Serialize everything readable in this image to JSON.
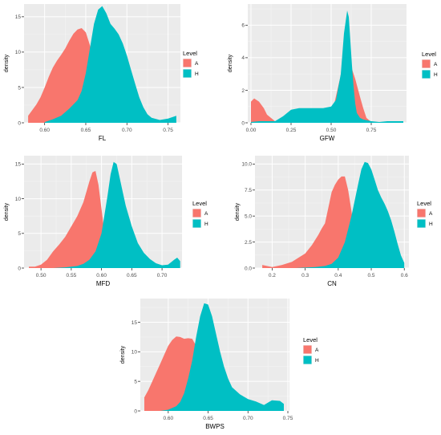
{
  "colors": {
    "A": "#F8766D",
    "H": "#00BFC4",
    "panel_bg": "#EBEBEB",
    "grid_major": "#FFFFFF",
    "grid_minor": "#F4F4F4"
  },
  "legend": {
    "title": "Level",
    "items": [
      {
        "key": "A",
        "label": "A"
      },
      {
        "key": "H",
        "label": "H"
      }
    ]
  },
  "chart_data": [
    {
      "type": "area",
      "title": "",
      "xlabel": "FL",
      "ylabel": "density",
      "xlim": [
        0.575,
        0.765
      ],
      "ylim": [
        0,
        16.8
      ],
      "xticks": [
        0.6,
        0.65,
        0.7,
        0.75
      ],
      "xtick_labels": [
        "0.60",
        "0.65",
        "0.70",
        "0.75"
      ],
      "yticks": [
        0,
        5,
        10,
        15
      ],
      "ytick_labels": [
        "0",
        "5",
        "10",
        "15"
      ],
      "series": [
        {
          "name": "A",
          "x": [
            0.58,
            0.585,
            0.59,
            0.595,
            0.6,
            0.605,
            0.61,
            0.615,
            0.62,
            0.625,
            0.63,
            0.635,
            0.64,
            0.645,
            0.65,
            0.655,
            0.66,
            0.665
          ],
          "y": [
            1.0,
            1.8,
            2.6,
            3.6,
            5.0,
            6.5,
            7.8,
            8.8,
            9.6,
            10.5,
            11.6,
            12.6,
            13.2,
            13.4,
            12.8,
            11.0,
            8.0,
            5.0
          ]
        },
        {
          "name": "H",
          "x": [
            0.6,
            0.61,
            0.62,
            0.63,
            0.64,
            0.645,
            0.65,
            0.655,
            0.66,
            0.665,
            0.67,
            0.675,
            0.68,
            0.685,
            0.69,
            0.695,
            0.7,
            0.705,
            0.71,
            0.715,
            0.72,
            0.725,
            0.73,
            0.74,
            0.75,
            0.76
          ],
          "y": [
            0.1,
            0.5,
            1.0,
            2.0,
            3.2,
            4.5,
            7.0,
            10.5,
            14.0,
            16.0,
            16.5,
            15.5,
            14.0,
            13.3,
            12.5,
            11.2,
            9.5,
            7.5,
            5.5,
            3.6,
            2.2,
            1.2,
            0.7,
            0.4,
            0.6,
            1.0
          ]
        }
      ]
    },
    {
      "type": "area",
      "title": "",
      "xlabel": "GFW",
      "ylabel": "density",
      "xlim": [
        -0.02,
        0.97
      ],
      "ylim": [
        0,
        7.3
      ],
      "xticks": [
        0.0,
        0.25,
        0.5,
        0.75
      ],
      "xtick_labels": [
        "0.00",
        "0.25",
        "0.50",
        "0.75"
      ],
      "yticks": [
        0,
        2,
        4,
        6
      ],
      "ytick_labels": [
        "0",
        "2",
        "4",
        "6"
      ],
      "series": [
        {
          "name": "A",
          "x": [
            0.0,
            0.02,
            0.05,
            0.08,
            0.1,
            0.15,
            0.2,
            0.3,
            0.4,
            0.45,
            0.5,
            0.52,
            0.55,
            0.58,
            0.6,
            0.62,
            0.65,
            0.68,
            0.7,
            0.72,
            0.75
          ],
          "y": [
            1.3,
            1.5,
            1.3,
            0.9,
            0.5,
            0.1,
            0.0,
            0.0,
            0.0,
            0.1,
            0.6,
            1.2,
            2.5,
            3.6,
            4.0,
            3.6,
            2.7,
            1.6,
            0.9,
            0.3,
            0.05
          ]
        },
        {
          "name": "H",
          "x": [
            0.0,
            0.05,
            0.1,
            0.15,
            0.2,
            0.25,
            0.3,
            0.35,
            0.4,
            0.45,
            0.5,
            0.53,
            0.56,
            0.58,
            0.6,
            0.61,
            0.62,
            0.63,
            0.64,
            0.65,
            0.66,
            0.68,
            0.7,
            0.75,
            0.8,
            0.85,
            0.9,
            0.95
          ],
          "y": [
            0.05,
            0.1,
            0.1,
            0.1,
            0.4,
            0.8,
            0.9,
            0.9,
            0.9,
            0.9,
            1.0,
            1.4,
            3.0,
            5.5,
            6.9,
            6.5,
            5.0,
            3.5,
            2.2,
            1.2,
            0.6,
            0.3,
            0.2,
            0.1,
            0.05,
            0.1,
            0.1,
            0.1
          ]
        }
      ]
    },
    {
      "type": "area",
      "title": "",
      "xlabel": "MFD",
      "ylabel": "density",
      "xlim": [
        0.472,
        0.733
      ],
      "ylim": [
        0,
        16.2
      ],
      "xticks": [
        0.5,
        0.55,
        0.6,
        0.65,
        0.7
      ],
      "xtick_labels": [
        "0.50",
        "0.55",
        "0.60",
        "0.65",
        "0.70"
      ],
      "yticks": [
        0,
        5,
        10,
        15
      ],
      "ytick_labels": [
        "0",
        "5",
        "10",
        "15"
      ],
      "series": [
        {
          "name": "A",
          "x": [
            0.48,
            0.49,
            0.5,
            0.51,
            0.52,
            0.53,
            0.54,
            0.55,
            0.56,
            0.57,
            0.58,
            0.585,
            0.59,
            0.595,
            0.6,
            0.605,
            0.61,
            0.615
          ],
          "y": [
            0.2,
            0.2,
            0.5,
            1.2,
            2.4,
            3.4,
            4.5,
            6.0,
            7.5,
            9.5,
            12.5,
            13.8,
            14.0,
            12.0,
            8.5,
            5.0,
            2.5,
            0.8
          ]
        },
        {
          "name": "H",
          "x": [
            0.48,
            0.5,
            0.52,
            0.54,
            0.56,
            0.57,
            0.58,
            0.59,
            0.6,
            0.61,
            0.615,
            0.62,
            0.625,
            0.63,
            0.635,
            0.64,
            0.65,
            0.66,
            0.67,
            0.68,
            0.69,
            0.7,
            0.71,
            0.72,
            0.725,
            0.73
          ],
          "y": [
            0.0,
            0.0,
            0.0,
            0.1,
            0.3,
            0.6,
            1.2,
            2.4,
            5.0,
            10.5,
            13.5,
            15.3,
            15.0,
            13.0,
            11.0,
            9.0,
            6.0,
            3.6,
            2.2,
            1.3,
            0.7,
            0.4,
            0.5,
            1.2,
            1.5,
            1.0
          ]
        }
      ]
    },
    {
      "type": "area",
      "title": "",
      "xlabel": "CN",
      "ylabel": "density",
      "xlim": [
        0.148,
        0.614
      ],
      "ylim": [
        0,
        10.8
      ],
      "xticks": [
        0.2,
        0.3,
        0.4,
        0.5,
        0.6
      ],
      "xtick_labels": [
        "0.2",
        "0.3",
        "0.4",
        "0.5",
        "0.6"
      ],
      "yticks": [
        0.0,
        2.5,
        5.0,
        7.5,
        10.0
      ],
      "ytick_labels": [
        "0.0",
        "2.5",
        "5.0",
        "7.5",
        "10.0"
      ],
      "series": [
        {
          "name": "A",
          "x": [
            0.17,
            0.2,
            0.23,
            0.26,
            0.28,
            0.3,
            0.32,
            0.34,
            0.35,
            0.36,
            0.37,
            0.38,
            0.39,
            0.4,
            0.41,
            0.42,
            0.43,
            0.44,
            0.45,
            0.46,
            0.47
          ],
          "y": [
            0.3,
            0.1,
            0.3,
            0.6,
            1.0,
            1.4,
            2.2,
            3.2,
            3.8,
            4.3,
            5.8,
            7.3,
            8.0,
            8.5,
            8.8,
            8.8,
            7.5,
            5.5,
            3.2,
            1.5,
            0.5
          ]
        },
        {
          "name": "H",
          "x": [
            0.17,
            0.22,
            0.27,
            0.3,
            0.33,
            0.36,
            0.38,
            0.4,
            0.42,
            0.44,
            0.46,
            0.47,
            0.48,
            0.49,
            0.5,
            0.51,
            0.52,
            0.53,
            0.54,
            0.55,
            0.56,
            0.57,
            0.58,
            0.59,
            0.6
          ],
          "y": [
            0.0,
            0.0,
            0.0,
            0.05,
            0.1,
            0.2,
            0.4,
            1.0,
            2.5,
            5.0,
            8.0,
            9.5,
            10.2,
            10.1,
            9.5,
            8.5,
            7.5,
            6.8,
            6.2,
            5.5,
            4.6,
            3.5,
            2.3,
            1.2,
            0.5
          ]
        }
      ]
    },
    {
      "type": "area",
      "title": "",
      "xlabel": "BWPS",
      "ylabel": "density",
      "xlim": [
        0.565,
        0.752
      ],
      "ylim": [
        0,
        19.0
      ],
      "xticks": [
        0.6,
        0.65,
        0.7,
        0.75
      ],
      "xtick_labels": [
        "0.60",
        "0.65",
        "0.70",
        "0.75"
      ],
      "yticks": [
        0,
        5,
        10,
        15
      ],
      "ytick_labels": [
        "0",
        "5",
        "10",
        "15"
      ],
      "series": [
        {
          "name": "A",
          "x": [
            0.57,
            0.575,
            0.58,
            0.585,
            0.59,
            0.595,
            0.6,
            0.605,
            0.61,
            0.615,
            0.62,
            0.625,
            0.63,
            0.635,
            0.64,
            0.645,
            0.65,
            0.655,
            0.66
          ],
          "y": [
            2.3,
            3.5,
            5.0,
            6.5,
            8.0,
            9.5,
            11.0,
            12.0,
            12.6,
            12.5,
            12.2,
            12.3,
            12.2,
            11.0,
            9.0,
            6.0,
            3.5,
            1.5,
            0.4
          ]
        },
        {
          "name": "H",
          "x": [
            0.575,
            0.59,
            0.6,
            0.61,
            0.615,
            0.62,
            0.625,
            0.63,
            0.635,
            0.64,
            0.645,
            0.65,
            0.655,
            0.66,
            0.665,
            0.67,
            0.675,
            0.68,
            0.69,
            0.7,
            0.71,
            0.72,
            0.73,
            0.74,
            0.745
          ],
          "y": [
            0.0,
            0.0,
            0.2,
            0.8,
            1.5,
            3.0,
            5.5,
            8.5,
            12.5,
            16.0,
            18.2,
            18.0,
            16.0,
            13.0,
            10.0,
            7.5,
            5.5,
            4.0,
            2.8,
            2.0,
            1.6,
            1.0,
            1.8,
            1.7,
            1.2
          ]
        }
      ]
    }
  ]
}
